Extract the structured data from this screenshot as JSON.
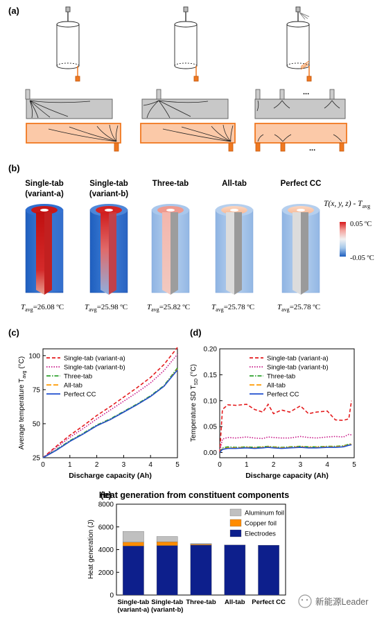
{
  "panel_labels": {
    "a": "(a)",
    "b": "(b)",
    "c": "(c)",
    "d": "(d)",
    "e": "(e)"
  },
  "panel_a": {
    "ellipsis": "..."
  },
  "panel_b": {
    "configs": [
      {
        "title1": "Single-tab",
        "title2": "(variant-a)",
        "tavg_prefix": "T",
        "tavg_sub": "avg",
        "tavg_value": "=26.08 ºC",
        "style": "hot"
      },
      {
        "title1": "Single-tab",
        "title2": "(variant-b)",
        "tavg_prefix": "T",
        "tavg_sub": "avg",
        "tavg_value": "=25.98 ºC",
        "style": "warm"
      },
      {
        "title1": "Three-tab",
        "title2": "",
        "tavg_prefix": "T",
        "tavg_sub": "avg",
        "tavg_value": "=25.82 ºC",
        "style": "mild"
      },
      {
        "title1": "All-tab",
        "title2": "",
        "tavg_prefix": "T",
        "tavg_sub": "avg",
        "tavg_value": "=25.78 ºC",
        "style": "cool"
      },
      {
        "title1": "Perfect CC",
        "title2": "",
        "tavg_prefix": "T",
        "tavg_sub": "avg",
        "tavg_value": "=25.78 ºC",
        "style": "cool"
      }
    ],
    "colorbar": {
      "title": "T(x, y, z) - T",
      "title_sub": "avg",
      "max_label": "0.05 ºC",
      "min_label": "-0.05 ºC",
      "colors": [
        "#d7191c",
        "#f4a6a0",
        "#f2f2f2",
        "#a6c8ea",
        "#1f5fbf"
      ]
    }
  },
  "colors": {
    "variant_a": "#e41a1c",
    "variant_b": "#c71585",
    "three_tab": "#2ca02c",
    "all_tab": "#ff9900",
    "perfect_cc": "#1f4fcf",
    "aluminum": "#c0c0c0",
    "copper": "#ff8c00",
    "electrodes": "#0d1f8c"
  },
  "chart_data": [
    {
      "id": "c",
      "type": "line",
      "xlabel": "Discharge capacity (Ah)",
      "ylabel_prefix": "Average temperature T",
      "ylabel_sub": "avg",
      "ylabel_suffix": " (°C)",
      "xlim": [
        0,
        5
      ],
      "ylim": [
        25,
        105
      ],
      "xticks": [
        "0",
        "1",
        "2",
        "3",
        "4",
        "5"
      ],
      "yticks": [
        "25",
        "50",
        "75",
        "100"
      ],
      "grid": false,
      "legend_position": "top-left",
      "x": [
        0,
        0.5,
        1,
        1.5,
        2,
        2.5,
        3,
        3.5,
        4,
        4.5,
        5
      ],
      "series": [
        {
          "name": "Single-tab (variant-a)",
          "dash": "dash",
          "color_key": "variant_a",
          "values": [
            25,
            33.5,
            41.5,
            48.5,
            56,
            62.5,
            69.5,
            76.5,
            84,
            93.5,
            106
          ]
        },
        {
          "name": "Single-tab (variant-b)",
          "dash": "dot",
          "color_key": "variant_b",
          "values": [
            25,
            32.5,
            40,
            46.5,
            53.5,
            60,
            66.5,
            73,
            80,
            89,
            101
          ]
        },
        {
          "name": "Three-tab",
          "dash": "dashdot",
          "color_key": "three_tab",
          "values": [
            25,
            31,
            37.5,
            43,
            49,
            53.5,
            59,
            64.5,
            70.5,
            78,
            91
          ]
        },
        {
          "name": "All-tab",
          "dash": "longdash",
          "color_key": "all_tab",
          "values": [
            25,
            30.5,
            37,
            42.5,
            48.5,
            53,
            58.5,
            64,
            70,
            77.5,
            90
          ]
        },
        {
          "name": "Perfect CC",
          "dash": "solid",
          "color_key": "perfect_cc",
          "values": [
            25,
            30.5,
            37,
            42.5,
            48.5,
            53,
            58.5,
            64,
            70,
            77.5,
            89.5
          ]
        }
      ]
    },
    {
      "id": "d",
      "type": "line",
      "xlabel": "Discharge capacity (Ah)",
      "ylabel_prefix": "Temperature SD T",
      "ylabel_sub": "SD",
      "ylabel_suffix": " (°C)",
      "xlim": [
        0,
        5
      ],
      "ylim": [
        -0.01,
        0.2
      ],
      "xticks": [
        "0",
        "1",
        "2",
        "3",
        "4",
        "5"
      ],
      "yticks": [
        "0.00",
        "0.05",
        "0.10",
        "0.15",
        "0.20"
      ],
      "grid": false,
      "legend_position": "top-right",
      "x": [
        0,
        0.1,
        0.3,
        0.6,
        1,
        1.3,
        1.6,
        1.8,
        2,
        2.3,
        2.6,
        3,
        3.3,
        3.6,
        4,
        4.3,
        4.6,
        4.8,
        4.9
      ],
      "series": [
        {
          "name": "Single-tab (variant-a)",
          "dash": "dash",
          "color_key": "variant_a",
          "values": [
            0,
            0.083,
            0.092,
            0.091,
            0.093,
            0.083,
            0.078,
            0.093,
            0.075,
            0.082,
            0.078,
            0.09,
            0.075,
            0.078,
            0.08,
            0.063,
            0.062,
            0.065,
            0.1
          ]
        },
        {
          "name": "Single-tab (variant-b)",
          "dash": "dot",
          "color_key": "variant_b",
          "values": [
            0,
            0.026,
            0.029,
            0.028,
            0.03,
            0.028,
            0.027,
            0.03,
            0.029,
            0.028,
            0.028,
            0.031,
            0.029,
            0.028,
            0.03,
            0.031,
            0.03,
            0.035,
            0.034
          ]
        },
        {
          "name": "Three-tab",
          "dash": "dashdot",
          "color_key": "three_tab",
          "values": [
            0,
            0.009,
            0.011,
            0.01,
            0.011,
            0.01,
            0.011,
            0.012,
            0.011,
            0.01,
            0.011,
            0.012,
            0.011,
            0.011,
            0.012,
            0.012,
            0.013,
            0.016,
            0.017
          ]
        },
        {
          "name": "All-tab",
          "dash": "longdash",
          "color_key": "all_tab",
          "values": [
            0,
            0.007,
            0.009,
            0.009,
            0.01,
            0.009,
            0.01,
            0.011,
            0.01,
            0.009,
            0.01,
            0.011,
            0.01,
            0.01,
            0.011,
            0.011,
            0.012,
            0.015,
            0.016
          ]
        },
        {
          "name": "Perfect CC",
          "dash": "solid",
          "color_key": "perfect_cc",
          "values": [
            0,
            0.006,
            0.008,
            0.008,
            0.009,
            0.008,
            0.009,
            0.01,
            0.009,
            0.008,
            0.009,
            0.01,
            0.009,
            0.009,
            0.01,
            0.01,
            0.011,
            0.014,
            0.015
          ]
        }
      ]
    },
    {
      "id": "e",
      "type": "bar",
      "stacked": true,
      "title": "Heat generation from constituent components",
      "ylabel": "Heat generation (J)",
      "ylim": [
        0,
        8000
      ],
      "yticks": [
        "0",
        "2000",
        "4000",
        "6000",
        "8000"
      ],
      "legend_position": "top-right",
      "categories": [
        [
          "Single-tab",
          "(variant-a)"
        ],
        [
          "Single-tab",
          "(variant-b)"
        ],
        [
          "Three-tab"
        ],
        [
          "All-tab"
        ],
        [
          "Perfect CC"
        ]
      ],
      "series": [
        {
          "name": "Electrodes",
          "color_key": "electrodes",
          "values": [
            4320,
            4360,
            4400,
            4410,
            4390
          ]
        },
        {
          "name": "Copper foil",
          "color_key": "copper",
          "values": [
            330,
            320,
            80,
            0,
            0
          ]
        },
        {
          "name": "Aluminum foil",
          "color_key": "aluminum",
          "values": [
            950,
            480,
            50,
            0,
            0
          ]
        }
      ],
      "legend_order": [
        "Aluminum foil",
        "Copper foil",
        "Electrodes"
      ]
    }
  ],
  "watermark": {
    "text": "新能源Leader"
  }
}
